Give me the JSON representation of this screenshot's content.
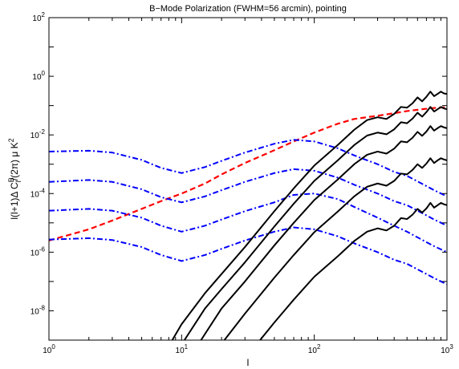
{
  "chart_data": {
    "type": "line",
    "title": "B−Mode Polarization (FWHM=56 arcmin), pointing",
    "xlabel": "l",
    "ylabel": "l(l+1)Δ C^B_l/(2π) μ K^2",
    "x_scale": "log",
    "y_scale": "log",
    "xlim": [
      1,
      1000
    ],
    "ylim": [
      1e-09,
      100
    ],
    "grid": false,
    "legend": "none",
    "x_ticks": [
      {
        "value": 1,
        "label": "10^0"
      },
      {
        "value": 10,
        "label": "10^1"
      },
      {
        "value": 100,
        "label": "10^2"
      },
      {
        "value": 1000,
        "label": "10^3"
      }
    ],
    "y_ticks": [
      {
        "value": 1e-08,
        "label": "10^-8"
      },
      {
        "value": 1e-06,
        "label": "10^-6"
      },
      {
        "value": 0.0001,
        "label": "10^-4"
      },
      {
        "value": 0.01,
        "label": "10^-2"
      },
      {
        "value": 1,
        "label": "10^0"
      },
      {
        "value": 100,
        "label": "10^2"
      }
    ],
    "series": [
      {
        "style": "dashed",
        "color": "#ff0000",
        "x": [
          1,
          2,
          3,
          5,
          7,
          10,
          15,
          20,
          30,
          50,
          70,
          100,
          150,
          200,
          300,
          400,
          500,
          600,
          700,
          800,
          1000
        ],
        "y": [
          2.5e-06,
          6e-06,
          1.2e-05,
          3e-05,
          5.5e-05,
          0.0001,
          0.00022,
          0.00045,
          0.0011,
          0.003,
          0.006,
          0.012,
          0.024,
          0.035,
          0.045,
          0.055,
          0.065,
          0.072,
          0.078,
          0.083,
          0.088
        ]
      },
      {
        "style": "dashdot",
        "color": "#0000ff",
        "x": [
          1,
          2,
          3,
          5,
          7,
          10,
          15,
          20,
          30,
          50,
          70,
          100,
          150,
          200,
          300,
          400,
          500,
          600,
          700,
          800,
          1000
        ],
        "y": [
          0.0027,
          0.0029,
          0.0025,
          0.0014,
          0.00075,
          0.0005,
          0.0008,
          0.0013,
          0.0025,
          0.005,
          0.0068,
          0.006,
          0.0035,
          0.002,
          0.001,
          0.00055,
          0.0004,
          0.00026,
          0.00018,
          0.00013,
          8e-05
        ]
      },
      {
        "style": "dashdot",
        "color": "#0000ff",
        "x": [
          1,
          2,
          3,
          5,
          7,
          10,
          15,
          20,
          30,
          50,
          70,
          100,
          150,
          200,
          300,
          400,
          500,
          600,
          700,
          800,
          1000
        ],
        "y": [
          0.00025,
          0.00029,
          0.00025,
          0.00014,
          7.5e-05,
          5e-05,
          8e-05,
          0.00013,
          0.00025,
          0.0005,
          0.00068,
          0.0006,
          0.00035,
          0.0002,
          0.0001,
          5.5e-05,
          4e-05,
          2.6e-05,
          1.8e-05,
          1.3e-05,
          8e-06
        ]
      },
      {
        "style": "dashdot",
        "color": "#0000ff",
        "x": [
          1,
          2,
          3,
          5,
          7,
          10,
          15,
          20,
          30,
          50,
          70,
          100,
          150,
          200,
          300,
          400,
          500,
          600,
          700,
          800,
          1000
        ],
        "y": [
          2.6e-05,
          3e-05,
          2.6e-05,
          1.5e-05,
          8e-06,
          5e-06,
          8e-06,
          1.3e-05,
          2.5e-05,
          5e-05,
          9e-05,
          0.0001,
          6.5e-05,
          3.5e-05,
          1.5e-05,
          8e-06,
          5e-06,
          3.2e-06,
          2.2e-06,
          1.6e-06,
          1e-06
        ]
      },
      {
        "style": "dashdot",
        "color": "#0000ff",
        "x": [
          1,
          2,
          3,
          5,
          7,
          10,
          15,
          20,
          30,
          50,
          70,
          100,
          150,
          200,
          300,
          400,
          500,
          600,
          700,
          800,
          1000
        ],
        "y": [
          2.7e-06,
          3e-06,
          2.6e-06,
          1.5e-06,
          8e-07,
          5e-07,
          8e-07,
          1.3e-06,
          2.5e-06,
          5e-06,
          7e-06,
          6e-06,
          3.5e-06,
          2e-06,
          1e-06,
          5.5e-07,
          4e-07,
          2.6e-07,
          1.8e-07,
          1.3e-07,
          8e-08
        ]
      },
      {
        "style": "solid",
        "color": "#000000",
        "x": [
          8.5,
          10,
          15,
          20,
          30,
          50,
          70,
          100,
          150,
          200,
          250,
          300,
          350,
          400,
          450,
          500,
          550,
          600,
          650,
          700,
          750,
          800,
          850,
          900,
          950,
          1000
        ],
        "y": [
          1e-09,
          3.5e-09,
          4e-08,
          1.8e-07,
          1.5e-06,
          2.5e-05,
          0.00015,
          0.0009,
          0.0045,
          0.015,
          0.032,
          0.04,
          0.035,
          0.052,
          0.09,
          0.085,
          0.12,
          0.19,
          0.14,
          0.2,
          0.3,
          0.21,
          0.25,
          0.3,
          0.26,
          0.25
        ]
      },
      {
        "style": "solid",
        "color": "#000000",
        "x": [
          10.5,
          15,
          20,
          30,
          50,
          70,
          100,
          150,
          200,
          250,
          300,
          350,
          400,
          450,
          500,
          550,
          600,
          650,
          700,
          750,
          800,
          850,
          900,
          950,
          1000
        ],
        "y": [
          1e-09,
          1.2e-08,
          5.5e-08,
          4.5e-07,
          7.5e-06,
          4.5e-05,
          0.00027,
          0.00135,
          0.0045,
          0.0095,
          0.012,
          0.0105,
          0.0155,
          0.027,
          0.025,
          0.036,
          0.057,
          0.042,
          0.06,
          0.09,
          0.063,
          0.075,
          0.09,
          0.08,
          0.075
        ]
      },
      {
        "style": "solid",
        "color": "#000000",
        "x": [
          14,
          20,
          30,
          50,
          70,
          100,
          150,
          200,
          250,
          300,
          350,
          400,
          450,
          500,
          550,
          600,
          650,
          700,
          750,
          800,
          850,
          900,
          950,
          1000
        ],
        "y": [
          1e-09,
          1.2e-08,
          1e-07,
          1.7e-06,
          1e-05,
          6e-05,
          0.0003,
          0.001,
          0.0021,
          0.0027,
          0.0023,
          0.0034,
          0.006,
          0.0056,
          0.008,
          0.0127,
          0.0093,
          0.013,
          0.02,
          0.014,
          0.017,
          0.02,
          0.018,
          0.017
        ]
      },
      {
        "style": "solid",
        "color": "#000000",
        "x": [
          21,
          30,
          50,
          70,
          100,
          150,
          200,
          250,
          300,
          350,
          400,
          450,
          500,
          550,
          600,
          650,
          700,
          750,
          800,
          850,
          900,
          950,
          1000
        ],
        "y": [
          1e-09,
          8e-09,
          1.35e-07,
          8e-07,
          4.8e-06,
          2.4e-05,
          8e-05,
          0.00017,
          0.00022,
          0.000185,
          0.00027,
          0.00048,
          0.00045,
          0.00064,
          0.001,
          0.00075,
          0.00105,
          0.0016,
          0.0011,
          0.00135,
          0.0016,
          0.00145,
          0.00135
        ]
      },
      {
        "style": "solid",
        "color": "#000000",
        "x": [
          39,
          50,
          70,
          100,
          150,
          200,
          250,
          300,
          350,
          400,
          450,
          500,
          550,
          600,
          650,
          700,
          750,
          800,
          850,
          900,
          950,
          1000
        ],
        "y": [
          1e-09,
          4e-09,
          2.4e-08,
          1.45e-07,
          7.2e-07,
          2.4e-06,
          5e-06,
          6.5e-06,
          5.5e-06,
          8e-06,
          1.45e-05,
          1.35e-05,
          1.9e-05,
          3e-05,
          2.25e-05,
          3.1e-05,
          4.8e-05,
          3.3e-05,
          4e-05,
          4.8e-05,
          4.3e-05,
          4e-05
        ]
      }
    ]
  }
}
